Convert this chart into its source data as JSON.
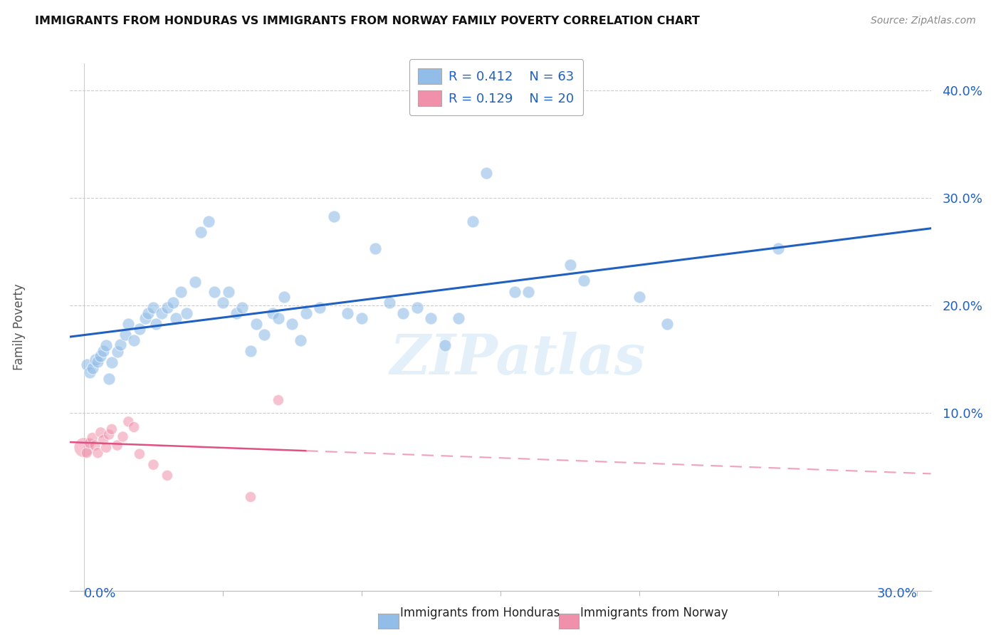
{
  "title": "IMMIGRANTS FROM HONDURAS VS IMMIGRANTS FROM NORWAY FAMILY POVERTY CORRELATION CHART",
  "source": "Source: ZipAtlas.com",
  "ylabel": "Family Poverty",
  "xlim": [
    -0.005,
    0.305
  ],
  "ylim": [
    -0.065,
    0.425
  ],
  "legend_r1": "R = 0.412",
  "legend_n1": "N = 63",
  "legend_r2": "R = 0.129",
  "legend_n2": "N = 20",
  "honduras_color": "#92bde8",
  "norway_color": "#f090aa",
  "honduras_line_color": "#2060c0",
  "norway_line_color": "#e05080",
  "norway_dash_color": "#f0a0b8",
  "watermark": "ZIPatlas",
  "honduras_points": [
    [
      0.001,
      0.145
    ],
    [
      0.002,
      0.138
    ],
    [
      0.003,
      0.142
    ],
    [
      0.004,
      0.15
    ],
    [
      0.005,
      0.148
    ],
    [
      0.006,
      0.153
    ],
    [
      0.007,
      0.158
    ],
    [
      0.008,
      0.163
    ],
    [
      0.009,
      0.132
    ],
    [
      0.01,
      0.147
    ],
    [
      0.012,
      0.157
    ],
    [
      0.013,
      0.164
    ],
    [
      0.015,
      0.173
    ],
    [
      0.016,
      0.183
    ],
    [
      0.018,
      0.168
    ],
    [
      0.02,
      0.178
    ],
    [
      0.022,
      0.188
    ],
    [
      0.023,
      0.193
    ],
    [
      0.025,
      0.198
    ],
    [
      0.026,
      0.183
    ],
    [
      0.028,
      0.193
    ],
    [
      0.03,
      0.198
    ],
    [
      0.032,
      0.203
    ],
    [
      0.033,
      0.188
    ],
    [
      0.035,
      0.213
    ],
    [
      0.037,
      0.193
    ],
    [
      0.04,
      0.222
    ],
    [
      0.042,
      0.268
    ],
    [
      0.045,
      0.278
    ],
    [
      0.047,
      0.213
    ],
    [
      0.05,
      0.203
    ],
    [
      0.052,
      0.213
    ],
    [
      0.055,
      0.193
    ],
    [
      0.057,
      0.198
    ],
    [
      0.06,
      0.158
    ],
    [
      0.062,
      0.183
    ],
    [
      0.065,
      0.173
    ],
    [
      0.068,
      0.193
    ],
    [
      0.07,
      0.188
    ],
    [
      0.072,
      0.208
    ],
    [
      0.075,
      0.183
    ],
    [
      0.078,
      0.168
    ],
    [
      0.08,
      0.193
    ],
    [
      0.085,
      0.198
    ],
    [
      0.09,
      0.283
    ],
    [
      0.095,
      0.193
    ],
    [
      0.1,
      0.188
    ],
    [
      0.105,
      0.253
    ],
    [
      0.11,
      0.203
    ],
    [
      0.115,
      0.193
    ],
    [
      0.12,
      0.198
    ],
    [
      0.125,
      0.188
    ],
    [
      0.13,
      0.163
    ],
    [
      0.135,
      0.188
    ],
    [
      0.14,
      0.278
    ],
    [
      0.145,
      0.323
    ],
    [
      0.155,
      0.213
    ],
    [
      0.16,
      0.213
    ],
    [
      0.175,
      0.238
    ],
    [
      0.18,
      0.223
    ],
    [
      0.2,
      0.208
    ],
    [
      0.21,
      0.183
    ],
    [
      0.25,
      0.253
    ]
  ],
  "norway_points": [
    [
      0.0,
      0.068
    ],
    [
      0.001,
      0.063
    ],
    [
      0.002,
      0.072
    ],
    [
      0.003,
      0.077
    ],
    [
      0.004,
      0.07
    ],
    [
      0.005,
      0.063
    ],
    [
      0.006,
      0.082
    ],
    [
      0.007,
      0.075
    ],
    [
      0.008,
      0.068
    ],
    [
      0.009,
      0.08
    ],
    [
      0.01,
      0.085
    ],
    [
      0.012,
      0.07
    ],
    [
      0.014,
      0.078
    ],
    [
      0.016,
      0.092
    ],
    [
      0.018,
      0.087
    ],
    [
      0.02,
      0.062
    ],
    [
      0.025,
      0.052
    ],
    [
      0.03,
      0.042
    ],
    [
      0.06,
      0.022
    ],
    [
      0.07,
      0.112
    ]
  ],
  "norway_data_xlim": [
    0.0,
    0.025
  ],
  "norway_dash_xlim": [
    0.025,
    0.305
  ]
}
